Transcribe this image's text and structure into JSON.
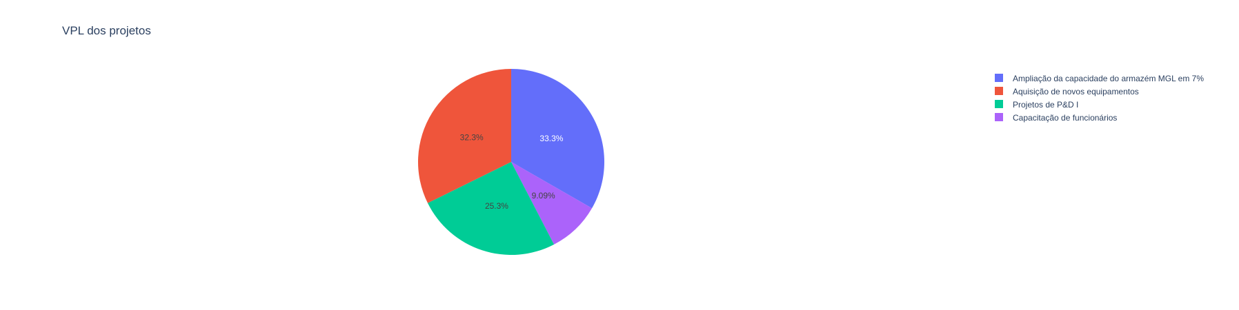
{
  "chart_data": {
    "type": "pie",
    "title": "VPL dos projetos",
    "slices": [
      {
        "label": "Ampliação da capacidade do armazém MGL em 7%",
        "percent": 33.3,
        "percent_text": "33.3%",
        "color": "#636efa",
        "text_color": "#ffffff"
      },
      {
        "label": "Capacitação de funcionários",
        "percent": 9.09,
        "percent_text": "9.09%",
        "color": "#ab63fa",
        "text_color": "#444444"
      },
      {
        "label": "Projetos de P&D I",
        "percent": 25.3,
        "percent_text": "25.3%",
        "color": "#00cc96",
        "text_color": "#444444"
      },
      {
        "label": "Aquisição de novos equipamentos",
        "percent": 32.3,
        "percent_text": "32.3%",
        "color": "#ef553b",
        "text_color": "#444444"
      }
    ],
    "legend": [
      {
        "label": "Ampliação da capacidade do armazém MGL em 7%",
        "color": "#636efa"
      },
      {
        "label": "Aquisição de novos equipamentos",
        "color": "#ef553b"
      },
      {
        "label": "Projetos de P&D I",
        "color": "#00cc96"
      },
      {
        "label": "Capacitação de funcionários",
        "color": "#ab63fa"
      }
    ],
    "legend_position": "top-right",
    "direction": "clockwise",
    "start": "top"
  }
}
